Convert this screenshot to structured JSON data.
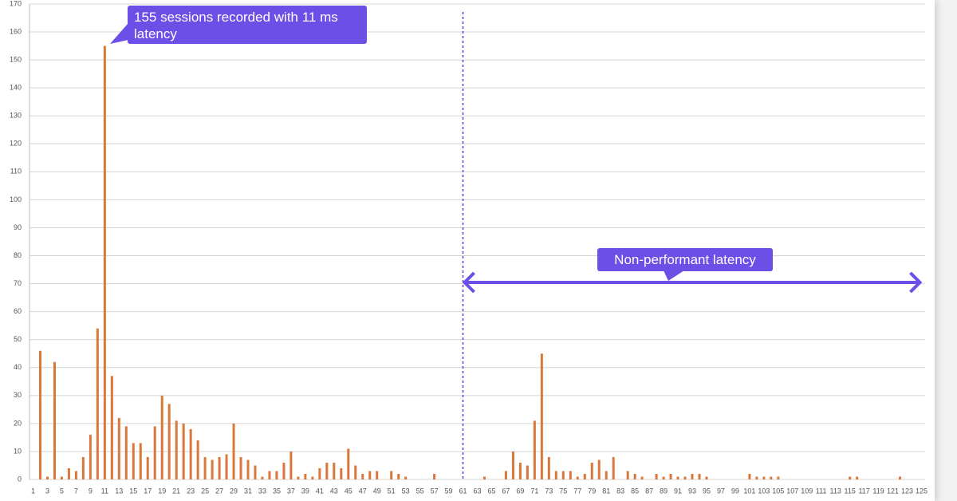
{
  "chart_data": {
    "type": "bar",
    "categories": [
      "1",
      null,
      "3",
      null,
      "5",
      null,
      "7",
      null,
      "9",
      null,
      "11",
      null,
      "13",
      null,
      "15",
      null,
      "17",
      null,
      "19",
      null,
      "21",
      null,
      "23",
      null,
      "25",
      null,
      "27",
      null,
      "29",
      null,
      "31",
      null,
      "33",
      null,
      "35",
      null,
      "37",
      null,
      "39",
      null,
      "41",
      null,
      "43",
      null,
      "45",
      null,
      "47",
      null,
      "49",
      null,
      "51",
      null,
      "53",
      null,
      "55",
      null,
      "57",
      null,
      "59",
      null,
      "61",
      null,
      "63",
      null,
      "65",
      null,
      "67",
      null,
      "69",
      null,
      "71",
      null,
      "73",
      null,
      "75",
      null,
      "77",
      null,
      "79",
      null,
      "81",
      null,
      "83",
      null,
      "85",
      null,
      "87",
      null,
      "89",
      null,
      "91",
      null,
      "93",
      null,
      "95",
      null,
      "97",
      null,
      "99",
      null,
      "101",
      null,
      "103",
      null,
      "105",
      null,
      "107",
      null,
      "109",
      null,
      "111",
      null,
      "113",
      null,
      "115",
      null,
      "117",
      null,
      "119",
      null,
      "121",
      null,
      "123",
      null,
      "125"
    ],
    "values": [
      0,
      46,
      1,
      42,
      1,
      4,
      3,
      8,
      16,
      54,
      155,
      37,
      22,
      19,
      13,
      13,
      8,
      19,
      30,
      27,
      21,
      20,
      18,
      14,
      8,
      7,
      8,
      9,
      20,
      8,
      7,
      5,
      1,
      3,
      3,
      6,
      10,
      1,
      2,
      1,
      4,
      6,
      6,
      4,
      11,
      5,
      2,
      3,
      3,
      0,
      3,
      2,
      1,
      0,
      0,
      0,
      2,
      0,
      0,
      0,
      0,
      0,
      0,
      1,
      0,
      0,
      3,
      10,
      6,
      5,
      21,
      45,
      8,
      3,
      3,
      3,
      1,
      2,
      6,
      7,
      3,
      8,
      0,
      3,
      2,
      1,
      0,
      2,
      1,
      2,
      1,
      1,
      2,
      2,
      1,
      0,
      0,
      0,
      0,
      0,
      2,
      1,
      1,
      1,
      1,
      0,
      0,
      0,
      0,
      0,
      0,
      0,
      0,
      0,
      1,
      1,
      0,
      0,
      0,
      0,
      0,
      1,
      0,
      0,
      0
    ],
    "color": "#d9783a",
    "ylim": [
      0,
      170
    ],
    "yticks": [
      0,
      10,
      20,
      30,
      40,
      50,
      60,
      70,
      80,
      90,
      100,
      110,
      120,
      130,
      140,
      150,
      160,
      170
    ],
    "grid": true,
    "threshold": 61,
    "annotations": [
      "155 sessions recorded with 11 ms latency",
      "Non-performant latency"
    ]
  }
}
